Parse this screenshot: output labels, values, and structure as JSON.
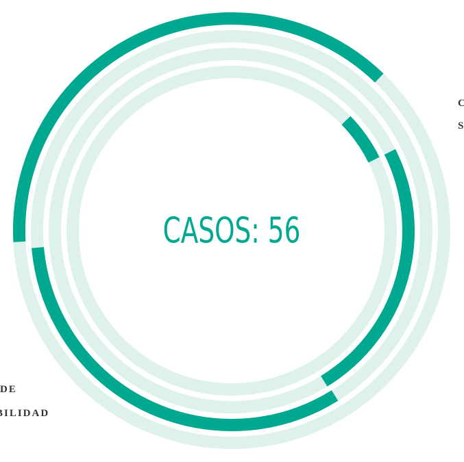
{
  "chart_data": {
    "type": "radial",
    "title": "CASOS: 56",
    "labels": [
      "C",
      "S",
      "DE",
      "BILIDAD"
    ],
    "track_color": "#dff1ec",
    "color": "#00a88f",
    "series": [
      {
        "start": 267,
        "end": 404
      },
      {
        "start": 148,
        "end": 265
      },
      {
        "start": 63.5,
        "end": 148.5
      },
      {
        "start": 46,
        "end": 63.5
      }
    ]
  }
}
